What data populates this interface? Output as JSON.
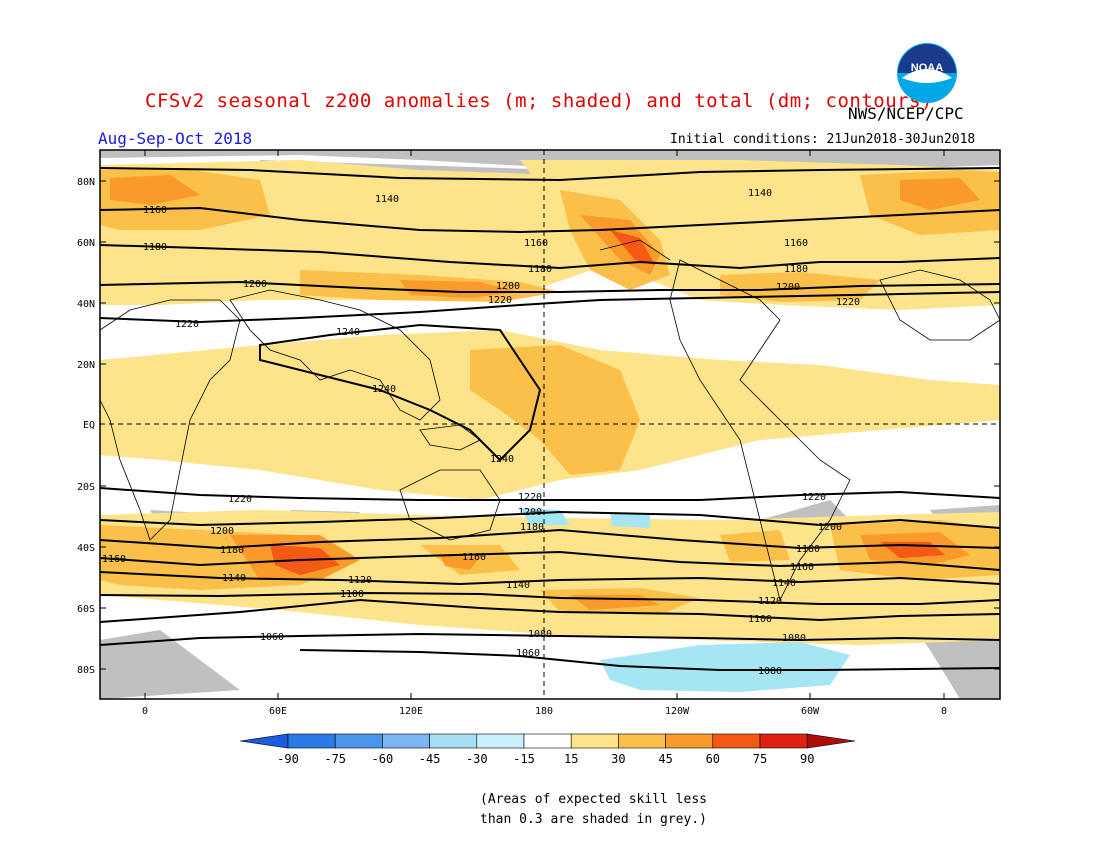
{
  "header": {
    "title": "CFSv2 seasonal z200 anomalies (m; shaded) and total (dm; contours)",
    "agency": "NWS/NCEP/CPC",
    "season": "Aug-Sep-Oct 2018",
    "initial_conditions": "Initial conditions: 21Jun2018-30Jun2018",
    "logo_text": "NOAA"
  },
  "map": {
    "lat_labels": [
      "80N",
      "60N",
      "40N",
      "20N",
      "EQ",
      "20S",
      "40S",
      "60S",
      "80S"
    ],
    "lon_labels": [
      "0",
      "60E",
      "120E",
      "180",
      "120W",
      "60W",
      "0"
    ],
    "contour_labels": [
      "1140",
      "1160",
      "1180",
      "1200",
      "1220",
      "1240",
      "1060",
      "1080",
      "1100",
      "1120"
    ],
    "reference_lines": "dashed equator and dashed 180 meridian",
    "colors": {
      "grey_low_skill": "#c0c0c0",
      "frame": "#000000"
    }
  },
  "colorbar": {
    "tick_labels": [
      "-90",
      "-75",
      "-60",
      "-45",
      "-30",
      "-15",
      "15",
      "30",
      "45",
      "60",
      "75",
      "90"
    ],
    "colors": [
      "#1c5ce0",
      "#2a7ae8",
      "#4a96ec",
      "#7cb6f2",
      "#a6dcf4",
      "#c8f0f8",
      "#ffffff",
      "#fde38a",
      "#fbc04a",
      "#f99a2a",
      "#f45a14",
      "#e02010",
      "#b00c0c"
    ]
  },
  "footnote": {
    "line1": "(Areas of expected skill less",
    "line2": "than 0.3 are shaded in grey.)"
  }
}
